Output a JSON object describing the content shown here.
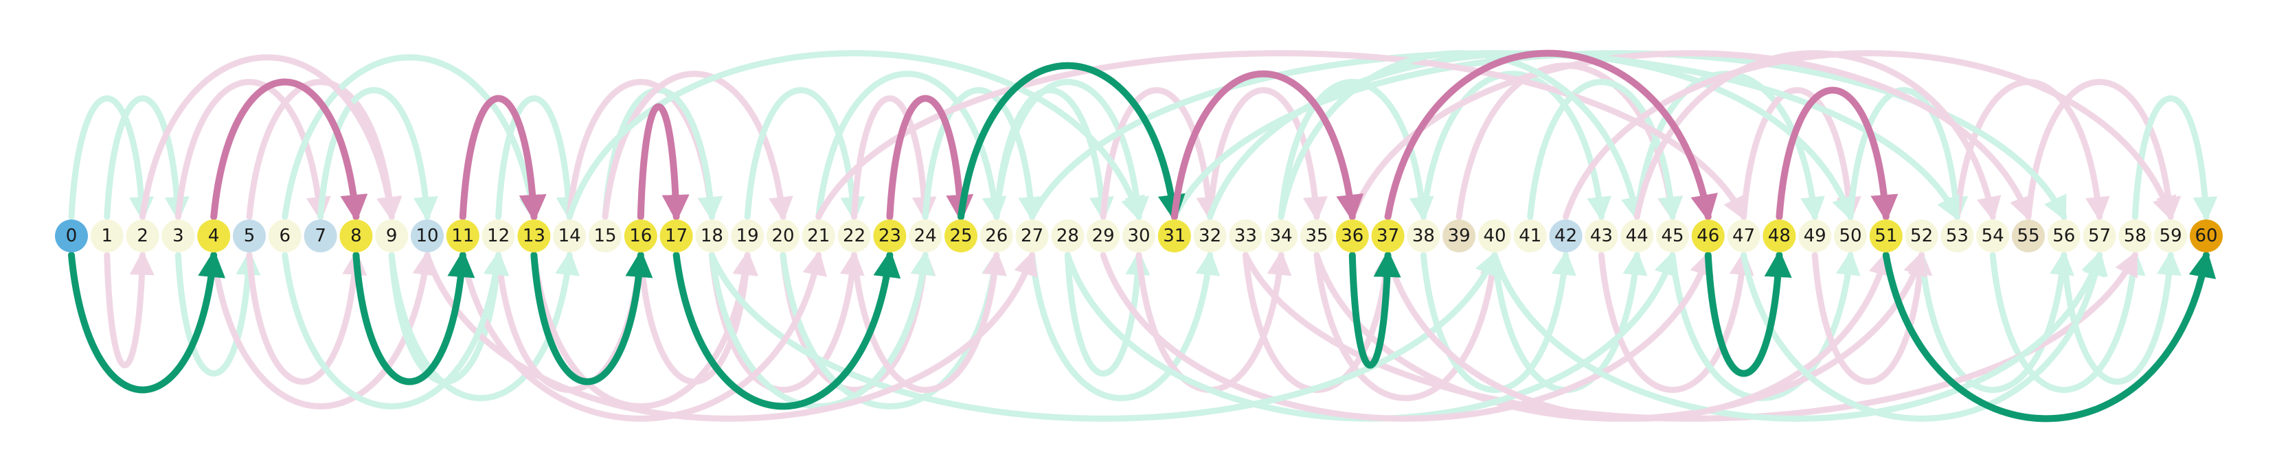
{
  "numberline": {
    "start": 0,
    "end": 60,
    "node_categories": {
      "start": [
        0
      ],
      "end": [
        60
      ],
      "highlight": [
        4,
        8,
        11,
        13,
        16,
        17,
        23,
        25,
        31,
        36,
        37,
        46,
        48,
        51
      ],
      "blue": [
        5,
        7,
        10,
        42
      ],
      "tan": [
        39,
        55
      ]
    }
  },
  "colors": {
    "start": "#5aafdf",
    "end": "#e59e08",
    "highlight": "#f0e442",
    "blue": "#c3dcea",
    "tan": "#e8dfc3",
    "plain": "#f6f6dc",
    "green_strong": "#0e9a70",
    "pink_strong": "#cc79a7",
    "green_faint": "#cdf2e6",
    "pink_faint": "#f0d6e4"
  },
  "path_jumps": [
    {
      "from": 0,
      "to": 4,
      "dir": "below"
    },
    {
      "from": 4,
      "to": 8,
      "dir": "above"
    },
    {
      "from": 8,
      "to": 11,
      "dir": "below"
    },
    {
      "from": 11,
      "to": 13,
      "dir": "above"
    },
    {
      "from": 13,
      "to": 16,
      "dir": "below"
    },
    {
      "from": 16,
      "to": 17,
      "dir": "above"
    },
    {
      "from": 17,
      "to": 23,
      "dir": "below"
    },
    {
      "from": 23,
      "to": 25,
      "dir": "above"
    },
    {
      "from": 25,
      "to": 31,
      "dir": "above"
    },
    {
      "from": 31,
      "to": 36,
      "dir": "above"
    },
    {
      "from": 36,
      "to": 37,
      "dir": "below"
    },
    {
      "from": 37,
      "to": 46,
      "dir": "above"
    },
    {
      "from": 46,
      "to": 48,
      "dir": "below"
    },
    {
      "from": 48,
      "to": 51,
      "dir": "above"
    },
    {
      "from": 51,
      "to": 60,
      "dir": "below"
    }
  ],
  "faint_jumps": [
    {
      "from": 1,
      "to": 3,
      "color": "green"
    },
    {
      "from": 1,
      "to": 2,
      "color": "pink"
    },
    {
      "from": 0,
      "to": 2,
      "color": "green"
    },
    {
      "from": 3,
      "to": 5,
      "color": "green"
    },
    {
      "from": 3,
      "to": 7,
      "color": "pink"
    },
    {
      "from": 5,
      "to": 8,
      "color": "pink"
    },
    {
      "from": 5,
      "to": 9,
      "color": "pink"
    },
    {
      "from": 4,
      "to": 10,
      "color": "pink"
    },
    {
      "from": 7,
      "to": 10,
      "color": "green"
    },
    {
      "from": 9,
      "to": 12,
      "color": "green"
    },
    {
      "from": 6,
      "to": 13,
      "color": "green"
    },
    {
      "from": 9,
      "to": 14,
      "color": "green"
    },
    {
      "from": 12,
      "to": 14,
      "color": "green"
    },
    {
      "from": 12,
      "to": 16,
      "color": "pink"
    },
    {
      "from": 14,
      "to": 18,
      "color": "pink"
    },
    {
      "from": 13,
      "to": 19,
      "color": "pink"
    },
    {
      "from": 15,
      "to": 18,
      "color": "green"
    },
    {
      "from": 16,
      "to": 19,
      "color": "pink"
    },
    {
      "from": 15,
      "to": 20,
      "color": "pink"
    },
    {
      "from": 18,
      "to": 22,
      "color": "pink"
    },
    {
      "from": 19,
      "to": 22,
      "color": "green"
    },
    {
      "from": 20,
      "to": 24,
      "color": "pink"
    },
    {
      "from": 21,
      "to": 26,
      "color": "green"
    },
    {
      "from": 18,
      "to": 24,
      "color": "green"
    },
    {
      "from": 22,
      "to": 24,
      "color": "pink"
    },
    {
      "from": 20,
      "to": 26,
      "color": "green"
    },
    {
      "from": 24,
      "to": 27,
      "color": "green"
    },
    {
      "from": 22,
      "to": 26,
      "color": "pink"
    },
    {
      "from": 26,
      "to": 30,
      "color": "green"
    },
    {
      "from": 27,
      "to": 32,
      "color": "green"
    },
    {
      "from": 26,
      "to": 29,
      "color": "green"
    },
    {
      "from": 28,
      "to": 30,
      "color": "green"
    },
    {
      "from": 29,
      "to": 32,
      "color": "pink"
    },
    {
      "from": 30,
      "to": 34,
      "color": "pink"
    },
    {
      "from": 32,
      "to": 35,
      "color": "pink"
    },
    {
      "from": 33,
      "to": 37,
      "color": "pink"
    },
    {
      "from": 34,
      "to": 38,
      "color": "green"
    },
    {
      "from": 35,
      "to": 40,
      "color": "pink"
    },
    {
      "from": 38,
      "to": 43,
      "color": "green"
    },
    {
      "from": 38,
      "to": 42,
      "color": "green"
    },
    {
      "from": 39,
      "to": 45,
      "color": "pink"
    },
    {
      "from": 40,
      "to": 44,
      "color": "green"
    },
    {
      "from": 41,
      "to": 45,
      "color": "green"
    },
    {
      "from": 43,
      "to": 47,
      "color": "pink"
    },
    {
      "from": 44,
      "to": 49,
      "color": "green"
    },
    {
      "from": 45,
      "to": 50,
      "color": "green"
    },
    {
      "from": 47,
      "to": 50,
      "color": "pink"
    },
    {
      "from": 49,
      "to": 52,
      "color": "pink"
    },
    {
      "from": 50,
      "to": 53,
      "color": "green"
    },
    {
      "from": 52,
      "to": 56,
      "color": "green"
    },
    {
      "from": 53,
      "to": 57,
      "color": "pink"
    },
    {
      "from": 54,
      "to": 58,
      "color": "green"
    },
    {
      "from": 55,
      "to": 59,
      "color": "pink"
    },
    {
      "from": 56,
      "to": 59,
      "color": "green"
    },
    {
      "from": 58,
      "to": 60,
      "color": "green"
    },
    {
      "from": 33,
      "to": 58,
      "color": "pink"
    },
    {
      "from": 31,
      "to": 56,
      "color": "green"
    },
    {
      "from": 35,
      "to": 52,
      "color": "pink"
    },
    {
      "from": 36,
      "to": 55,
      "color": "pink"
    },
    {
      "from": 28,
      "to": 45,
      "color": "green"
    },
    {
      "from": 27,
      "to": 53,
      "color": "green"
    },
    {
      "from": 29,
      "to": 46,
      "color": "pink"
    },
    {
      "from": 32,
      "to": 50,
      "color": "green"
    },
    {
      "from": 40,
      "to": 57,
      "color": "green"
    },
    {
      "from": 42,
      "to": 59,
      "color": "pink"
    },
    {
      "from": 18,
      "to": 40,
      "color": "green"
    },
    {
      "from": 21,
      "to": 47,
      "color": "pink"
    },
    {
      "from": 10,
      "to": 27,
      "color": "pink"
    },
    {
      "from": 14,
      "to": 30,
      "color": "green"
    },
    {
      "from": 11,
      "to": 21,
      "color": "pink"
    },
    {
      "from": 2,
      "to": 9,
      "color": "pink"
    },
    {
      "from": 6,
      "to": 12,
      "color": "green"
    },
    {
      "from": 34,
      "to": 44,
      "color": "green"
    },
    {
      "from": 37,
      "to": 51,
      "color": "pink"
    },
    {
      "from": 44,
      "to": 54,
      "color": "pink"
    },
    {
      "from": 47,
      "to": 57,
      "color": "green"
    }
  ]
}
